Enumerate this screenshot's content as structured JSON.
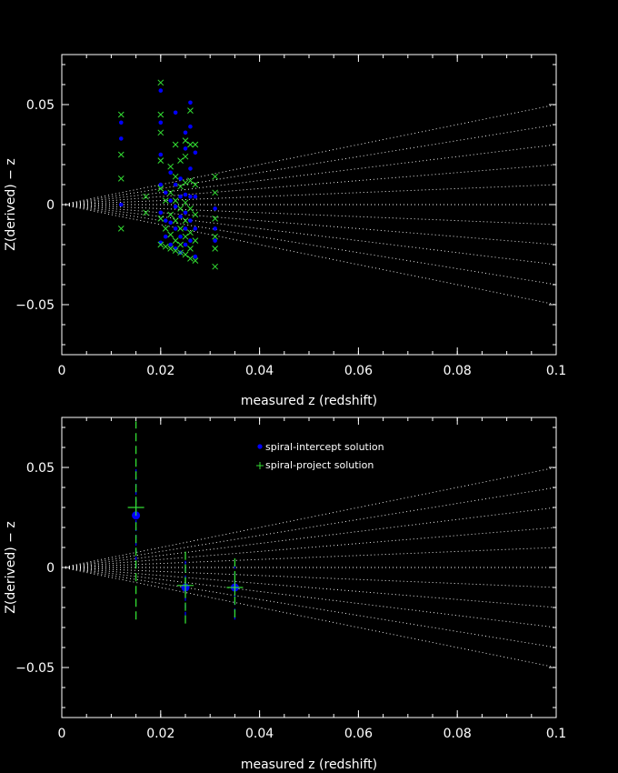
{
  "colors": {
    "background": "#000000",
    "axes": "#ffffff",
    "guide_lines": "#ffffff",
    "intercept": "#0000ff",
    "project": "#33dd33",
    "errorbar_intercept": "#0000ff",
    "errorbar_project": "#33dd33"
  },
  "chart_data": [
    {
      "type": "scatter",
      "title": "",
      "xlabel": "measured z (redshift)",
      "ylabel": "Z(derived) − z",
      "xlim": [
        0,
        0.1
      ],
      "ylim": [
        -0.075,
        0.075
      ],
      "xticks": [
        0,
        0.02,
        0.04,
        0.06,
        0.08,
        0.1
      ],
      "xtick_labels": [
        "0",
        "0.02",
        "0.04",
        "0.06",
        "0.08",
        "0.1"
      ],
      "yticks": [
        -0.05,
        0,
        0.05
      ],
      "ytick_labels": [
        "−0.05",
        "0",
        "0.05"
      ],
      "guide_line_slopes": [
        -0.5,
        -0.4,
        -0.3,
        -0.2,
        -0.1,
        0,
        0.1,
        0.2,
        0.3,
        0.4,
        0.5
      ],
      "grid": false,
      "series": [
        {
          "marker": "dot",
          "color": "#0000ff",
          "points": [
            [
              0.012,
              0.041
            ],
            [
              0.012,
              0.033
            ],
            [
              0.012,
              0.0
            ],
            [
              0.02,
              0.057
            ],
            [
              0.02,
              0.041
            ],
            [
              0.02,
              0.025
            ],
            [
              0.02,
              0.01
            ],
            [
              0.02,
              -0.004
            ],
            [
              0.02,
              -0.019
            ],
            [
              0.021,
              0.006
            ],
            [
              0.021,
              -0.008
            ],
            [
              0.021,
              -0.016
            ],
            [
              0.022,
              0.016
            ],
            [
              0.022,
              0.002
            ],
            [
              0.022,
              -0.009
            ],
            [
              0.022,
              -0.02
            ],
            [
              0.023,
              0.046
            ],
            [
              0.023,
              0.01
            ],
            [
              0.023,
              -0.001
            ],
            [
              0.023,
              -0.012
            ],
            [
              0.023,
              -0.022
            ],
            [
              0.024,
              0.013
            ],
            [
              0.024,
              0.004
            ],
            [
              0.024,
              -0.006
            ],
            [
              0.024,
              -0.016
            ],
            [
              0.024,
              -0.024
            ],
            [
              0.025,
              0.036
            ],
            [
              0.025,
              0.028
            ],
            [
              0.025,
              0.005
            ],
            [
              0.025,
              -0.004
            ],
            [
              0.025,
              -0.012
            ],
            [
              0.025,
              -0.02
            ],
            [
              0.026,
              0.051
            ],
            [
              0.026,
              0.039
            ],
            [
              0.026,
              0.018
            ],
            [
              0.026,
              0.004
            ],
            [
              0.026,
              -0.008
            ],
            [
              0.026,
              -0.018
            ],
            [
              0.027,
              0.026
            ],
            [
              0.027,
              0.004
            ],
            [
              0.027,
              -0.012
            ],
            [
              0.027,
              -0.026
            ],
            [
              0.031,
              -0.002
            ],
            [
              0.031,
              -0.012
            ],
            [
              0.031,
              -0.018
            ]
          ]
        },
        {
          "marker": "x",
          "color": "#33dd33",
          "points": [
            [
              0.012,
              0.045
            ],
            [
              0.012,
              0.025
            ],
            [
              0.012,
              0.013
            ],
            [
              0.012,
              -0.012
            ],
            [
              0.017,
              0.004
            ],
            [
              0.017,
              -0.004
            ],
            [
              0.02,
              0.061
            ],
            [
              0.02,
              0.045
            ],
            [
              0.02,
              0.036
            ],
            [
              0.02,
              0.022
            ],
            [
              0.02,
              0.008
            ],
            [
              0.02,
              -0.007
            ],
            [
              0.02,
              -0.02
            ],
            [
              0.021,
              0.002
            ],
            [
              0.021,
              -0.012
            ],
            [
              0.021,
              -0.021
            ],
            [
              0.022,
              0.019
            ],
            [
              0.022,
              0.006
            ],
            [
              0.022,
              -0.005
            ],
            [
              0.022,
              -0.015
            ],
            [
              0.022,
              -0.022
            ],
            [
              0.023,
              0.03
            ],
            [
              0.023,
              0.014
            ],
            [
              0.023,
              0.002
            ],
            [
              0.023,
              -0.008
            ],
            [
              0.023,
              -0.018
            ],
            [
              0.023,
              -0.023
            ],
            [
              0.024,
              0.022
            ],
            [
              0.024,
              0.009
            ],
            [
              0.024,
              -0.002
            ],
            [
              0.024,
              -0.012
            ],
            [
              0.024,
              -0.02
            ],
            [
              0.024,
              -0.024
            ],
            [
              0.025,
              0.032
            ],
            [
              0.025,
              0.024
            ],
            [
              0.025,
              0.011
            ],
            [
              0.025,
              0.001
            ],
            [
              0.025,
              -0.008
            ],
            [
              0.025,
              -0.016
            ],
            [
              0.025,
              -0.025
            ],
            [
              0.026,
              0.047
            ],
            [
              0.026,
              0.03
            ],
            [
              0.026,
              0.012
            ],
            [
              0.026,
              -0.002
            ],
            [
              0.026,
              -0.014
            ],
            [
              0.026,
              -0.022
            ],
            [
              0.026,
              -0.027
            ],
            [
              0.027,
              0.03
            ],
            [
              0.027,
              0.01
            ],
            [
              0.027,
              -0.005
            ],
            [
              0.027,
              -0.018
            ],
            [
              0.027,
              -0.028
            ],
            [
              0.031,
              0.014
            ],
            [
              0.031,
              0.006
            ],
            [
              0.031,
              -0.007
            ],
            [
              0.031,
              -0.016
            ],
            [
              0.031,
              -0.022
            ],
            [
              0.031,
              -0.031
            ]
          ]
        }
      ]
    },
    {
      "type": "scatter",
      "title": "",
      "xlabel": "measured z (redshift)",
      "ylabel": "Z(derived) − z",
      "xlim": [
        0,
        0.1
      ],
      "ylim": [
        -0.075,
        0.075
      ],
      "xticks": [
        0,
        0.02,
        0.04,
        0.06,
        0.08,
        0.1
      ],
      "xtick_labels": [
        "0",
        "0.02",
        "0.04",
        "0.06",
        "0.08",
        "0.1"
      ],
      "yticks": [
        -0.05,
        0,
        0.05
      ],
      "ytick_labels": [
        "−0.05",
        "0",
        "0.05"
      ],
      "guide_line_slopes": [
        -0.5,
        -0.4,
        -0.3,
        -0.2,
        -0.1,
        0,
        0.1,
        0.2,
        0.3,
        0.4,
        0.5
      ],
      "grid": false,
      "legend_position": "top-center",
      "series": [
        {
          "name": "spiral-intercept solution",
          "marker": "dot",
          "color": "#0000ff",
          "points": [
            {
              "x": 0.015,
              "y": 0.026,
              "err_lo": 0.0,
              "err_hi": 0.051
            },
            {
              "x": 0.025,
              "y": -0.01,
              "err_lo": -0.024,
              "err_hi": 0.004
            },
            {
              "x": 0.035,
              "y": -0.01,
              "err_lo": -0.026,
              "err_hi": 0.003
            }
          ]
        },
        {
          "name": "spiral-project solution",
          "marker": "plus",
          "color": "#33dd33",
          "points": [
            {
              "x": 0.015,
              "y": 0.03,
              "err_lo": -0.026,
              "err_hi": 0.073
            },
            {
              "x": 0.025,
              "y": -0.009,
              "err_lo": -0.028,
              "err_hi": 0.008
            },
            {
              "x": 0.035,
              "y": -0.01,
              "err_lo": -0.025,
              "err_hi": 0.005
            }
          ]
        }
      ]
    }
  ]
}
